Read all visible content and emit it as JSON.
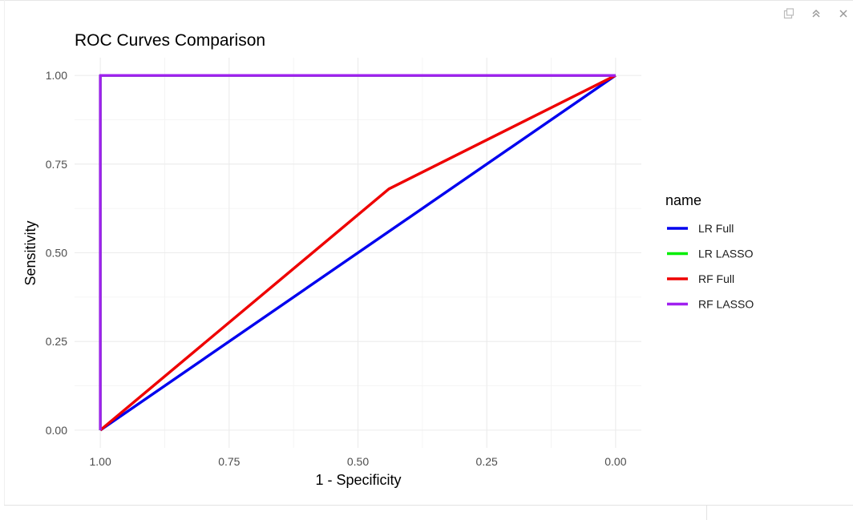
{
  "chart_data": {
    "type": "line",
    "title": "ROC Curves Comparison",
    "xlabel": "1 - Specificity",
    "ylabel": "Sensitivity",
    "x_reversed": true,
    "xlim": [
      1.05,
      -0.05
    ],
    "ylim": [
      -0.05,
      1.05
    ],
    "x_ticks": [
      1.0,
      0.75,
      0.5,
      0.25,
      0.0
    ],
    "x_tick_labels": [
      "1.00",
      "0.75",
      "0.50",
      "0.25",
      "0.00"
    ],
    "y_ticks": [
      0.0,
      0.25,
      0.5,
      0.75,
      1.0
    ],
    "y_tick_labels": [
      "0.00",
      "0.25",
      "0.50",
      "0.75",
      "1.00"
    ],
    "x_minor": [
      0.875,
      0.625,
      0.375,
      0.125
    ],
    "y_minor": [
      0.125,
      0.375,
      0.625,
      0.875
    ],
    "grid": true,
    "legend": {
      "title": "name",
      "placement": "right"
    },
    "series": [
      {
        "name": "LR Full",
        "color": "#0000ee",
        "points": [
          [
            1.0,
            0.0
          ],
          [
            0.0,
            1.0
          ]
        ]
      },
      {
        "name": "LR LASSO",
        "color": "#00ee00",
        "points": [
          [
            1.0,
            0.0
          ],
          [
            1.0,
            1.0
          ],
          [
            0.0,
            1.0
          ]
        ]
      },
      {
        "name": "RF Full",
        "color": "#ee0000",
        "points": [
          [
            1.0,
            0.0
          ],
          [
            0.44,
            0.68
          ],
          [
            0.0,
            1.0
          ]
        ]
      },
      {
        "name": "RF LASSO",
        "color": "#a020f0",
        "points": [
          [
            1.0,
            0.0
          ],
          [
            1.0,
            1.0
          ],
          [
            0.0,
            1.0
          ]
        ]
      }
    ]
  },
  "controls": {
    "popout_icon": "popout-icon",
    "maximize_icon": "double-chevron-up-icon",
    "close_icon": "close-icon"
  }
}
